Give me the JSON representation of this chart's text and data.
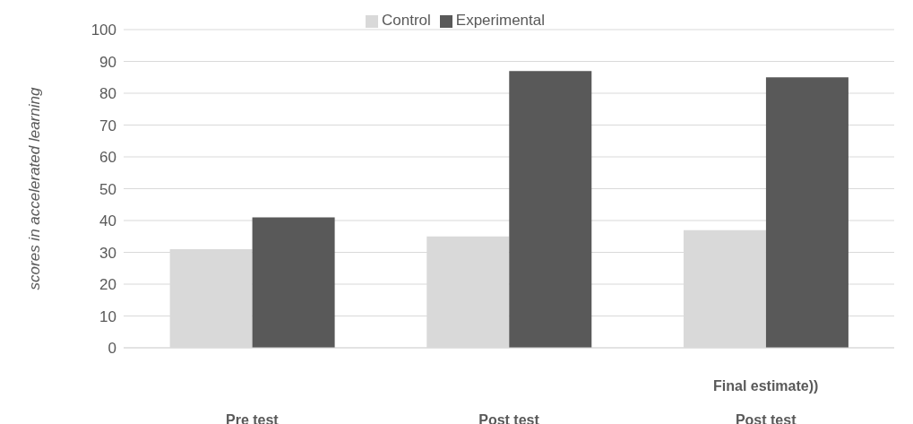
{
  "chart_data": {
    "type": "bar",
    "ylabel": "scores in accelerated learning",
    "categories": [
      "Pre test",
      "Post test",
      "Final estimate))\nPost test"
    ],
    "series": [
      {
        "name": "Control",
        "color": "#d9d9d9",
        "values": [
          31,
          35,
          37
        ]
      },
      {
        "name": "Experimental",
        "color": "#595959",
        "values": [
          41,
          87,
          85
        ]
      }
    ],
    "ylim": [
      0,
      100
    ],
    "yticks": [
      0,
      10,
      20,
      30,
      40,
      50,
      60,
      70,
      80,
      90,
      100
    ],
    "grid": "y",
    "legend": "top"
  }
}
